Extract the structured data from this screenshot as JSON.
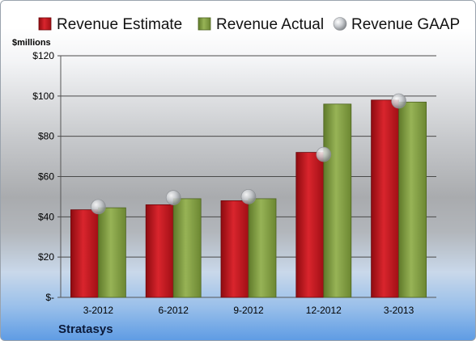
{
  "chart_data": {
    "type": "bar",
    "categories": [
      "3-2012",
      "6-2012",
      "9-2012",
      "12-2012",
      "3-2013"
    ],
    "series": [
      {
        "name": "Revenue Estimate",
        "values": [
          43.5,
          46,
          48,
          72,
          98
        ],
        "color": "#c0141c"
      },
      {
        "name": "Revenue Actual",
        "values": [
          44.5,
          49,
          49,
          96,
          97
        ],
        "color": "#7c9a3c"
      },
      {
        "name": "Revenue GAAP",
        "values": [
          45,
          49.5,
          50,
          71,
          97.5
        ],
        "color": "#b9bcc0",
        "marker": "circle"
      }
    ],
    "ylabel": "$millions",
    "ylim": [
      0,
      120
    ],
    "yticks": [
      0,
      20,
      40,
      60,
      80,
      100,
      120
    ],
    "ytick_labels": [
      "$-",
      "$20",
      "$40",
      "$60",
      "$80",
      "$100",
      "$120"
    ],
    "grid": true,
    "legend": "top"
  },
  "company": "Stratasys"
}
